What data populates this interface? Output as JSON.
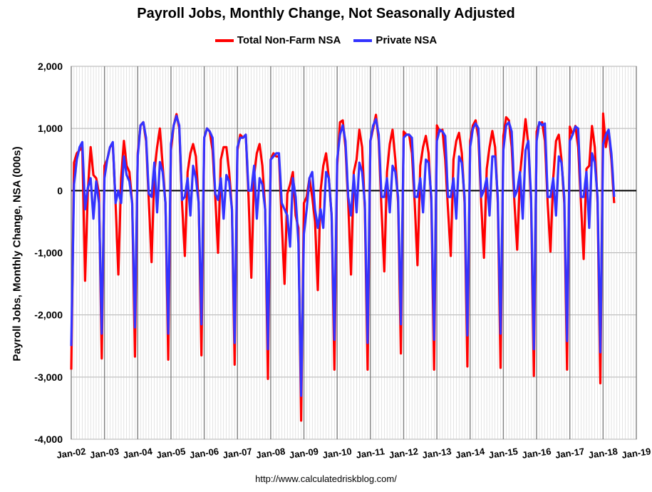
{
  "title": "Payroll Jobs, Monthly Change, Not Seasonally Adjusted",
  "ylabel": "Payroll Jobs, Monthly Change, NSA (000s)",
  "credit": "http://www.calculatedriskblog.com/",
  "colors": {
    "total": "#ff0000",
    "private": "#3333ff"
  },
  "chart_data": {
    "type": "line",
    "title": "Payroll Jobs, Monthly Change, Not Seasonally Adjusted",
    "xlabel": "",
    "ylabel": "Payroll Jobs, Monthly Change, NSA (000s)",
    "ylim": [
      -4000,
      2000
    ],
    "yticks": [
      2000,
      1000,
      0,
      -1000,
      -2000,
      -3000,
      -4000
    ],
    "ytick_labels": [
      "2,000",
      "1,000",
      "0",
      "-1,000",
      "-2,000",
      "-3,000",
      "-4,000"
    ],
    "xticks": [
      "Jan-02",
      "Jan-03",
      "Jan-04",
      "Jan-05",
      "Jan-06",
      "Jan-07",
      "Jan-08",
      "Jan-09",
      "Jan-10",
      "Jan-11",
      "Jan-12",
      "Jan-13",
      "Jan-14",
      "Jan-15",
      "Jan-16",
      "Jan-17",
      "Jan-18",
      "Jan-19"
    ],
    "x_start": "Jan-02",
    "x_frequency": "monthly",
    "grid": true,
    "legend_position": "top",
    "series": [
      {
        "name": "Total Non-Farm NSA",
        "color": "#ff0000",
        "values": [
          -2880,
          450,
          600,
          650,
          700,
          -1450,
          0,
          700,
          250,
          200,
          -50,
          -2700,
          400,
          500,
          700,
          750,
          -200,
          -1350,
          200,
          800,
          400,
          300,
          -200,
          -2670,
          600,
          1050,
          1100,
          800,
          -150,
          -1150,
          300,
          700,
          1000,
          400,
          -200,
          -2720,
          650,
          1050,
          1230,
          1000,
          -200,
          -1050,
          300,
          600,
          750,
          550,
          -200,
          -2650,
          850,
          1000,
          950,
          650,
          -100,
          -1000,
          500,
          700,
          700,
          300,
          -300,
          -2800,
          650,
          900,
          850,
          900,
          -100,
          -1400,
          250,
          600,
          750,
          400,
          -300,
          -3030,
          500,
          600,
          550,
          550,
          -500,
          -1500,
          -50,
          100,
          300,
          -400,
          -600,
          -3700,
          -200,
          -100,
          200,
          -100,
          -500,
          -1600,
          0,
          400,
          600,
          200,
          -400,
          -2880,
          400,
          1100,
          1130,
          700,
          -200,
          -1350,
          300,
          500,
          980,
          700,
          -300,
          -2880,
          800,
          1000,
          1220,
          800,
          -300,
          -1300,
          300,
          750,
          980,
          500,
          -200,
          -2620,
          950,
          900,
          900,
          600,
          -200,
          -1200,
          400,
          700,
          880,
          600,
          -200,
          -2880,
          1050,
          950,
          980,
          500,
          -300,
          -1050,
          500,
          800,
          930,
          600,
          -200,
          -2830,
          800,
          1050,
          1130,
          850,
          -200,
          -1080,
          350,
          700,
          960,
          700,
          -200,
          -2850,
          880,
          1180,
          1130,
          700,
          -200,
          -950,
          250,
          700,
          1150,
          750,
          -200,
          -2980,
          950,
          1080,
          1100,
          800,
          -200,
          -980,
          200,
          800,
          900,
          500,
          -200,
          -2880,
          1030,
          900,
          1040,
          700,
          -200,
          -1100,
          350,
          400,
          1040,
          700,
          -200,
          -3100,
          1240,
          700,
          970,
          500,
          -200
        ]
      },
      {
        "name": "Private NSA",
        "color": "#3333ff",
        "values": [
          -2500,
          100,
          500,
          700,
          780,
          -300,
          50,
          200,
          -450,
          150,
          -200,
          -2300,
          200,
          500,
          700,
          780,
          -200,
          0,
          -200,
          550,
          250,
          150,
          -200,
          -2200,
          550,
          1050,
          1100,
          850,
          -50,
          -100,
          450,
          -350,
          460,
          300,
          -200,
          -2300,
          750,
          1050,
          1200,
          1050,
          -150,
          -100,
          200,
          -400,
          400,
          200,
          -200,
          -2150,
          850,
          1000,
          950,
          850,
          -50,
          -150,
          200,
          -450,
          250,
          150,
          -300,
          -2450,
          700,
          850,
          850,
          900,
          0,
          0,
          400,
          -450,
          200,
          100,
          -300,
          -2550,
          500,
          550,
          600,
          600,
          -200,
          -300,
          -400,
          -900,
          200,
          -100,
          -850,
          -3300,
          -700,
          -300,
          200,
          300,
          -300,
          -600,
          -300,
          -600,
          300,
          200,
          -400,
          -2400,
          500,
          900,
          1050,
          800,
          -100,
          -400,
          250,
          -350,
          450,
          300,
          -200,
          -2450,
          800,
          1050,
          1150,
          900,
          -100,
          -100,
          200,
          -350,
          400,
          300,
          -100,
          -2150,
          850,
          900,
          900,
          850,
          -100,
          -100,
          200,
          -350,
          500,
          450,
          -100,
          -2400,
          800,
          980,
          950,
          880,
          -100,
          -100,
          200,
          -450,
          550,
          450,
          -100,
          -2330,
          700,
          1000,
          1080,
          1000,
          -100,
          0,
          200,
          -400,
          550,
          550,
          -100,
          -2300,
          650,
          1050,
          1100,
          950,
          -100,
          0,
          300,
          -450,
          650,
          800,
          -100,
          -2550,
          800,
          1100,
          1050,
          1080,
          -100,
          -100,
          200,
          -400,
          550,
          450,
          -100,
          -2420,
          800,
          900,
          1030,
          1000,
          -100,
          -100,
          300,
          -600,
          600,
          450,
          -100,
          -2600,
          750,
          900,
          980,
          600,
          -100
        ]
      }
    ]
  }
}
